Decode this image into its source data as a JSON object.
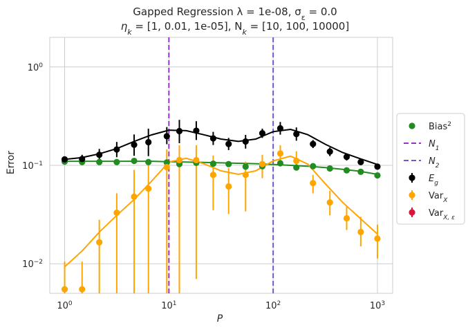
{
  "chart_data": {
    "type": "scatter",
    "title_line1": "Gapped Regression λ = 1e-08, σ",
    "title_line1_sub": "ε",
    "title_line1_tail": " = 0.0",
    "title_line2_a": "η",
    "title_line2_a_sub": "k",
    "title_line2_b": " = [1, 0.01, 1e-05], N",
    "title_line2_b_sub": "k",
    "title_line2_c": " = [10, 100, 10000]",
    "xlabel": "P",
    "ylabel": "Error",
    "xscale": "log",
    "yscale": "log",
    "xlim": [
      0.72,
      1400
    ],
    "ylim": [
      0.005,
      2.0
    ],
    "grid": true,
    "x_ticks": [
      {
        "value": 1,
        "base": "10",
        "exp": "0"
      },
      {
        "value": 10,
        "base": "10",
        "exp": "1"
      },
      {
        "value": 100,
        "base": "10",
        "exp": "2"
      },
      {
        "value": 1000,
        "base": "10",
        "exp": "3"
      }
    ],
    "y_ticks": [
      {
        "value": 0.01,
        "base": "10",
        "exp": "−2"
      },
      {
        "value": 0.1,
        "base": "10",
        "exp": "−1"
      },
      {
        "value": 1,
        "base": "10",
        "exp": "0"
      }
    ],
    "x": [
      1.0,
      1.47,
      2.15,
      3.16,
      4.64,
      6.81,
      10.0,
      14.7,
      21.5,
      31.6,
      46.4,
      68.1,
      100,
      147,
      215,
      316,
      464,
      681,
      1000
    ],
    "x_points": [
      1.0,
      1.47,
      2.15,
      3.16,
      4.64,
      6.36,
      9.55,
      12.6,
      18.3,
      26.6,
      37.4,
      54.4,
      78.7,
      117,
      167,
      241,
      350,
      507,
      692,
      1000
    ],
    "vlines": [
      {
        "name": "N1",
        "x": 10,
        "color": "#9932cc"
      },
      {
        "name": "N2",
        "x": 100,
        "color": "#6a5acd"
      }
    ],
    "series": [
      {
        "name": "Bias²",
        "color": "#228b22",
        "points": [
          0.109,
          0.108,
          0.108,
          0.108,
          0.111,
          0.108,
          0.107,
          0.103,
          0.106,
          0.104,
          0.103,
          0.097,
          0.098,
          0.105,
          0.095,
          0.098,
          0.093,
          0.089,
          0.086,
          0.079
        ],
        "curve": [
          0.11,
          0.11,
          0.11,
          0.11,
          0.11,
          0.11,
          0.109,
          0.108,
          0.107,
          0.106,
          0.105,
          0.104,
          0.102,
          0.1,
          0.098,
          0.095,
          0.091,
          0.087,
          0.081
        ]
      },
      {
        "name": "E_g",
        "color": "#000000",
        "points": [
          0.115,
          0.116,
          0.128,
          0.145,
          0.162,
          0.172,
          0.198,
          0.223,
          0.225,
          0.188,
          0.165,
          0.175,
          0.212,
          0.238,
          0.208,
          0.165,
          0.138,
          0.122,
          0.108,
          0.097
        ],
        "err_low": [
          0.108,
          0.105,
          0.112,
          0.121,
          0.125,
          0.124,
          0.164,
          0.168,
          0.181,
          0.161,
          0.143,
          0.148,
          0.19,
          0.205,
          0.178,
          0.15,
          0.124,
          0.112,
          0.102,
          0.092
        ],
        "err_high": [
          0.123,
          0.128,
          0.147,
          0.173,
          0.206,
          0.236,
          0.245,
          0.29,
          0.281,
          0.219,
          0.19,
          0.204,
          0.236,
          0.276,
          0.243,
          0.181,
          0.152,
          0.132,
          0.115,
          0.103
        ],
        "curve": [
          0.115,
          0.12,
          0.131,
          0.148,
          0.175,
          0.204,
          0.228,
          0.225,
          0.205,
          0.185,
          0.175,
          0.185,
          0.22,
          0.232,
          0.205,
          0.164,
          0.135,
          0.117,
          0.102
        ]
      },
      {
        "name": "Var_X",
        "color": "#ffa500",
        "points": [
          0.0055,
          0.0055,
          0.0165,
          0.033,
          0.048,
          0.058,
          0.096,
          0.113,
          0.113,
          0.08,
          0.061,
          0.08,
          0.103,
          0.132,
          0.111,
          0.066,
          0.042,
          0.029,
          0.021,
          0.018
        ],
        "err_low": [
          0.0035,
          0.0035,
          0.0035,
          0.0035,
          0.0035,
          0.004,
          0.004,
          0.004,
          0.007,
          0.035,
          0.032,
          0.034,
          0.074,
          0.11,
          0.09,
          0.052,
          0.031,
          0.022,
          0.015,
          0.0113
        ],
        "err_high": [
          0.0105,
          0.0105,
          0.028,
          0.052,
          0.09,
          0.108,
          0.145,
          0.16,
          0.16,
          0.126,
          0.094,
          0.109,
          0.128,
          0.16,
          0.139,
          0.08,
          0.055,
          0.038,
          0.03,
          0.025
        ],
        "curve": [
          0.0093,
          0.0135,
          0.021,
          0.031,
          0.045,
          0.069,
          0.108,
          0.118,
          0.104,
          0.088,
          0.081,
          0.088,
          0.111,
          0.124,
          0.103,
          0.065,
          0.042,
          0.029,
          0.02
        ]
      },
      {
        "name": "Var_{X,ε}",
        "color": "#dc143c",
        "points": []
      }
    ],
    "legend": {
      "placement": "right",
      "entries": [
        {
          "kind": "dot",
          "label": "Bias",
          "sup": "2",
          "color": "#228b22"
        },
        {
          "kind": "dash",
          "label": "N",
          "sub": "1",
          "color": "#9932cc"
        },
        {
          "kind": "dash",
          "label": "N",
          "sub": "2",
          "color": "#6a5acd"
        },
        {
          "kind": "errdot",
          "label": "E",
          "sub": "g",
          "color": "#000000"
        },
        {
          "kind": "errdot",
          "label": "Var",
          "sub": "X",
          "color": "#ffa500"
        },
        {
          "kind": "errdot",
          "label": "Var",
          "sub": "X, ε",
          "color": "#dc143c"
        }
      ]
    }
  }
}
